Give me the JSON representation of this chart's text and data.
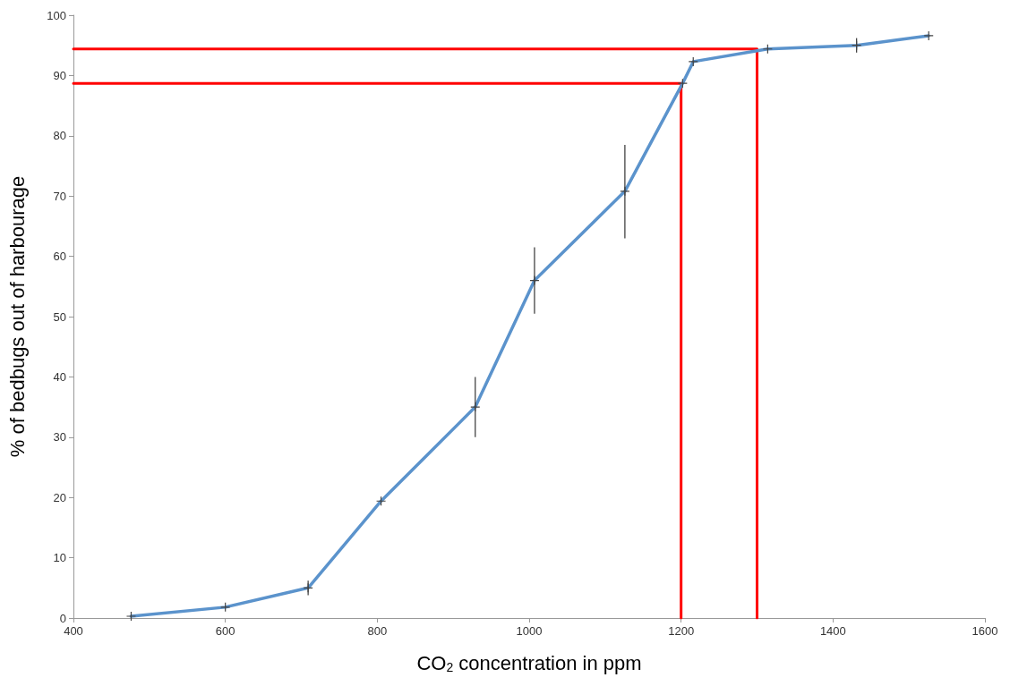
{
  "chart_data": {
    "type": "line",
    "xlabel": "CO$_{2}$ concentration in ppm",
    "ylabel": "% of bedbugs out of harbourage",
    "xlim": [
      400,
      1600
    ],
    "xticks": [
      400,
      600,
      800,
      1000,
      1200,
      1400,
      1600
    ],
    "ylim": [
      0,
      100
    ],
    "yticks": [
      0,
      10,
      20,
      30,
      40,
      50,
      60,
      70,
      80,
      90,
      100
    ],
    "grid": false,
    "marker": "cross",
    "line_style": "solid",
    "series": [
      {
        "color": "#5b93cc",
        "x": [
          476,
          600,
          709,
          805,
          929,
          1007,
          1126,
          1202,
          1216,
          1314,
          1431,
          1526
        ],
        "values": [
          0.3,
          1.8,
          5,
          19.4,
          35,
          56,
          70.8,
          88.7,
          92.3,
          94.4,
          95,
          96.6
        ],
        "errors": [
          null,
          null,
          1.2,
          null,
          5,
          [
            50.5,
            61.5
          ],
          [
            63,
            78.5
          ],
          null,
          null,
          null,
          1.2,
          null
        ]
      },
      {
        "color": "#ff0000",
        "marker": "none",
        "x": [
          1200,
          1200,
          400
        ],
        "values": [
          0,
          88.7,
          88.7
        ]
      },
      {
        "color": "#ff0000",
        "marker": "none",
        "x": [
          1300,
          1300,
          400
        ],
        "values": [
          0,
          94.4,
          94.4
        ]
      }
    ]
  }
}
